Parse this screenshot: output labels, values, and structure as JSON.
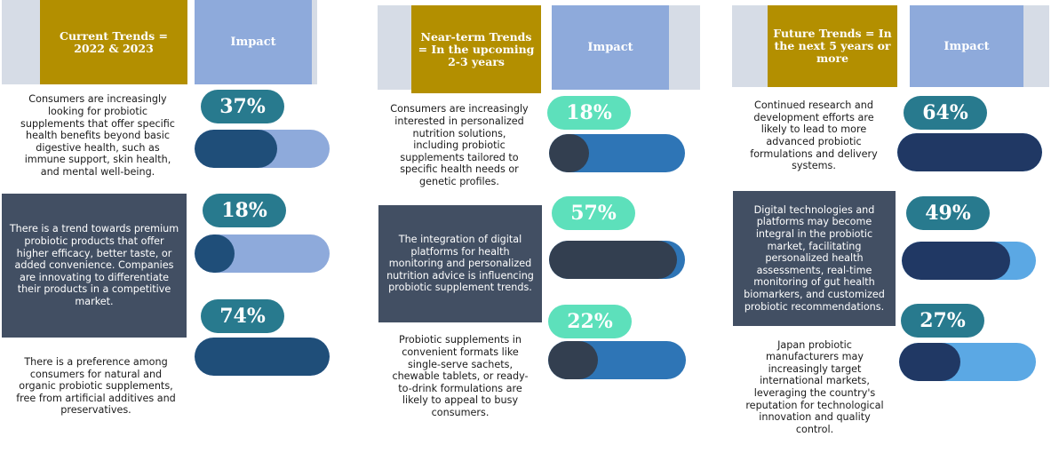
{
  "columns": [
    {
      "title": "Current Trends = 2022 & 2023",
      "impact_label": "Impact",
      "rows": [
        {
          "text": "Consumers are increasingly looking for probiotic supplements that offer specific health benefits beyond basic digestive health, such as immune support, skin health, and mental well-being.",
          "percent_label": "37%",
          "impact": 0.37,
          "dark": false
        },
        {
          "text": "There is a trend towards premium probiotic products that offer higher efficacy, better taste, or added convenience. Companies are innovating to differentiate their products in a competitive market.",
          "percent_label": "18%",
          "impact": 0.18,
          "dark": true
        },
        {
          "text": "There is a preference among consumers for natural and organic probiotic supplements, free from artificial additives and preservatives.",
          "percent_label": "74%",
          "impact": 0.74,
          "dark": false
        }
      ]
    },
    {
      "title": "Near-term Trends = In the upcoming 2-3 years",
      "impact_label": "Impact",
      "rows": [
        {
          "text": "Consumers are increasingly interested in personalized nutrition solutions, including probiotic supplements tailored to specific health needs or genetic profiles.",
          "percent_label": "18%",
          "impact": 0.18,
          "dark": false
        },
        {
          "text": "The integration of digital platforms for health monitoring and personalized nutrition advice is influencing probiotic supplement trends.",
          "percent_label": "57%",
          "impact": 0.57,
          "dark": true
        },
        {
          "text": "Probiotic supplements in convenient formats like single-serve sachets, chewable tablets, or ready-to-drink formulations are likely to appeal to busy consumers.",
          "percent_label": "22%",
          "impact": 0.22,
          "dark": false
        }
      ]
    },
    {
      "title": "Future Trends = In the next 5 years or more",
      "impact_label": "Impact",
      "rows": [
        {
          "text": "Continued research and development efforts are likely to lead to more advanced probiotic formulations and delivery systems.",
          "percent_label": "64%",
          "impact": 0.64,
          "dark": false
        },
        {
          "text": "Digital technologies and platforms may become integral in the probiotic market, facilitating personalized health assessments, real-time monitoring of gut health biomarkers, and customized probiotic recommendations.",
          "percent_label": "49%",
          "impact": 0.49,
          "dark": true
        },
        {
          "text": "Japan probiotic manufacturers may increasingly target international markets, leveraging the country's reputation for technological innovation and quality control.",
          "percent_label": "27%",
          "impact": 0.27,
          "dark": false
        }
      ]
    }
  ]
}
